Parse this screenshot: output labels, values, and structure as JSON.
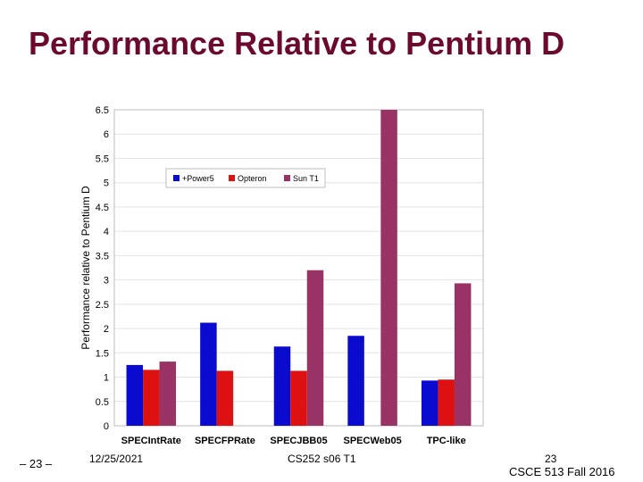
{
  "slide": {
    "title": "Performance Relative to Pentium D"
  },
  "footer": {
    "page_label": "– 23 –",
    "date": "12/25/2021",
    "course": "CS252 s06 T1",
    "slide_number": "23",
    "course_right": "CSCE 513 Fall 2016"
  },
  "colors": {
    "power5": "#0b0bd0",
    "opteron": "#dd1111",
    "sunt1": "#993366"
  },
  "chart_data": {
    "type": "bar",
    "categories": [
      "SPECIntRate",
      "SPECFPRate",
      "SPECJBB05",
      "SPECWeb05",
      "TPC-like"
    ],
    "series": [
      {
        "name": "+Power5",
        "values": [
          1.25,
          2.12,
          1.63,
          1.85,
          0.93
        ]
      },
      {
        "name": "Opteron",
        "values": [
          1.15,
          1.13,
          1.13,
          null,
          0.95
        ]
      },
      {
        "name": "Sun T1",
        "values": [
          1.32,
          null,
          3.2,
          6.5,
          2.93
        ]
      }
    ],
    "title": "",
    "xlabel": "",
    "ylabel": "Performance relative to Pentium D",
    "ylim": [
      0,
      6.5
    ],
    "yticks": [
      "0",
      "0.5",
      "1",
      "1.5",
      "2",
      "2.5",
      "3",
      "3.5",
      "4",
      "4.5",
      "5",
      "5.5",
      "6",
      "6.5"
    ],
    "grid": true,
    "legend_position": "top-center"
  }
}
